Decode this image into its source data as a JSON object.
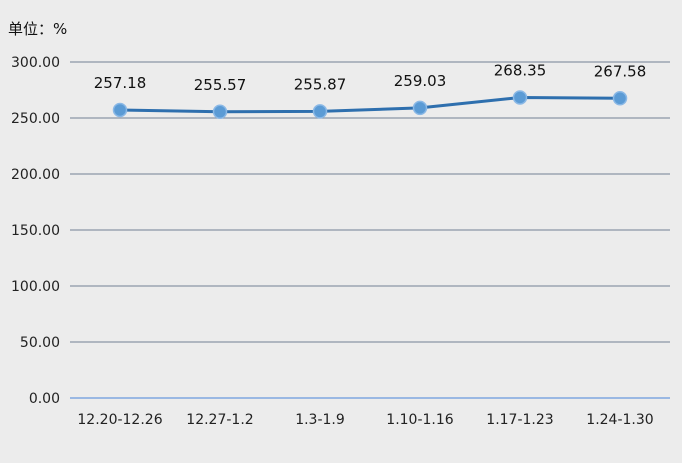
{
  "unit_label": "单位：%",
  "colors": {
    "background": "#ececec",
    "gridline": "#8a95a5",
    "baseline": "#7ea6e0",
    "line": "#2e6fae",
    "marker_fill": "#5b9bd5",
    "marker_stroke": "#8ab8e6"
  },
  "chart_data": {
    "type": "line",
    "categories": [
      "12.20-12.26",
      "12.27-1.2",
      "1.3-1.9",
      "1.10-1.16",
      "1.17-1.23",
      "1.24-1.30"
    ],
    "series": [
      {
        "values": [
          257.18,
          255.57,
          255.87,
          259.03,
          268.35,
          267.58
        ],
        "labels": [
          "257.18",
          "255.57",
          "255.87",
          "259.03",
          "268.35",
          "267.58"
        ]
      }
    ],
    "ylim": [
      0,
      300
    ],
    "yticks": [
      "0.00",
      "50.00",
      "100.00",
      "150.00",
      "200.00",
      "250.00",
      "300.00"
    ],
    "ytick_values": [
      0,
      50,
      100,
      150,
      200,
      250,
      300
    ],
    "grid": true,
    "legend": "none"
  }
}
